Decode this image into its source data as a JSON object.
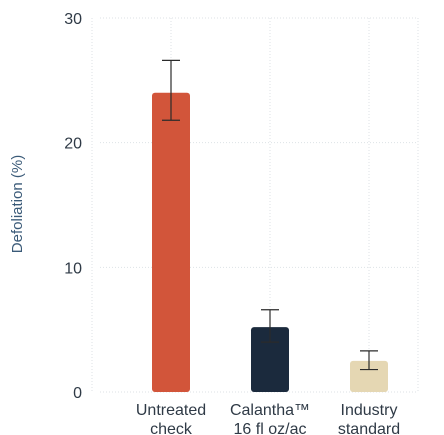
{
  "chart_data": {
    "type": "bar",
    "title": "",
    "xlabel": "",
    "ylabel": "Defoliation (%)",
    "ylim": [
      0,
      30
    ],
    "yticks": [
      0,
      10,
      20,
      30
    ],
    "grid": true,
    "categories": [
      [
        "Untreated",
        "check"
      ],
      [
        "Calantha™",
        "16 fl oz/ac"
      ],
      [
        "Industry",
        "standard"
      ]
    ],
    "values": [
      24.0,
      5.2,
      2.5
    ],
    "error_low": [
      21.8,
      4.0,
      1.8
    ],
    "error_high": [
      26.6,
      6.6,
      3.3
    ],
    "colors": [
      "#d2553a",
      "#1b2a3d",
      "#e5d7b3"
    ]
  }
}
